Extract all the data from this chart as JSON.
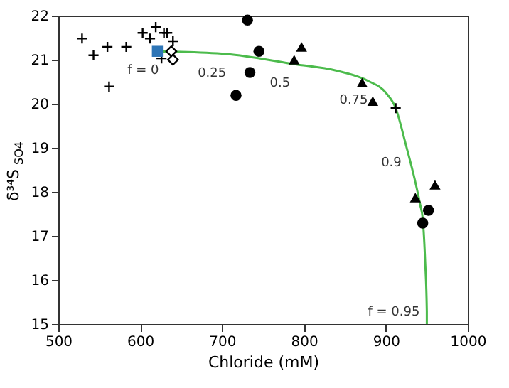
{
  "chart_data": {
    "type": "scatter",
    "xlabel": "Chloride (mM)",
    "ylabel": "δ³⁴S$_{SO4}$",
    "xlim": [
      500,
      1000
    ],
    "xticks": [
      500,
      600,
      700,
      800,
      900,
      1000
    ],
    "grid": false,
    "ylim": [
      15,
      22
    ],
    "yticks": [
      15,
      16,
      17,
      18,
      19,
      20,
      21,
      22
    ],
    "series": [
      {
        "type": "line",
        "color": "#4cbb4c",
        "marker": "none",
        "line_style": "solid",
        "x": [
          621,
          705,
          788,
          840,
          878,
          900,
          912,
          924,
          935,
          942,
          945,
          948,
          950,
          950
        ],
        "values": [
          21.19,
          21.13,
          20.9,
          20.75,
          20.52,
          20.25,
          19.9,
          19.1,
          18.3,
          17.7,
          17.39,
          16.4,
          15.29,
          15.0
        ]
      },
      {
        "color": "#000000",
        "marker": "cross",
        "x": [
          529,
          543,
          560,
          583,
          603,
          612,
          619,
          629,
          633,
          640,
          626,
          562
        ],
        "values": [
          21.48,
          21.1,
          21.29,
          21.29,
          21.61,
          21.48,
          21.74,
          21.61,
          21.61,
          21.42,
          21.03,
          20.39
        ]
      },
      {
        "color": "#2e75b6",
        "marker": "square",
        "x": [
          621
        ],
        "values": [
          21.19
        ]
      },
      {
        "color": "#000000",
        "marker": "diamond",
        "x": [
          638,
          640
        ],
        "values": [
          21.19,
          21.0
        ]
      },
      {
        "color": "#000000",
        "marker": "circle",
        "x": [
          731,
          745,
          734,
          717,
          945,
          952
        ],
        "values": [
          21.9,
          21.19,
          20.71,
          20.19,
          17.29,
          17.58
        ]
      },
      {
        "color": "#000000",
        "marker": "triangle",
        "x": [
          797,
          788,
          871,
          884,
          936,
          960
        ],
        "values": [
          21.29,
          21.0,
          20.48,
          20.06,
          17.87,
          18.16
        ]
      },
      {
        "color": "#000000",
        "marker": "cross",
        "x": [
          912
        ],
        "values": [
          19.9
        ]
      }
    ],
    "annotations": [
      {
        "text": "f = 0",
        "x": 621,
        "y": 21.19
      },
      {
        "text": "0.25",
        "x": 705,
        "y": 21.13
      },
      {
        "text": "0.5",
        "x": 788,
        "y": 20.9
      },
      {
        "text": "0.75",
        "x": 878,
        "y": 20.52
      },
      {
        "text": "0.9",
        "x": 924,
        "y": 19.1
      },
      {
        "text": "f = 0.95",
        "x": 950,
        "y": 15.29
      }
    ]
  }
}
